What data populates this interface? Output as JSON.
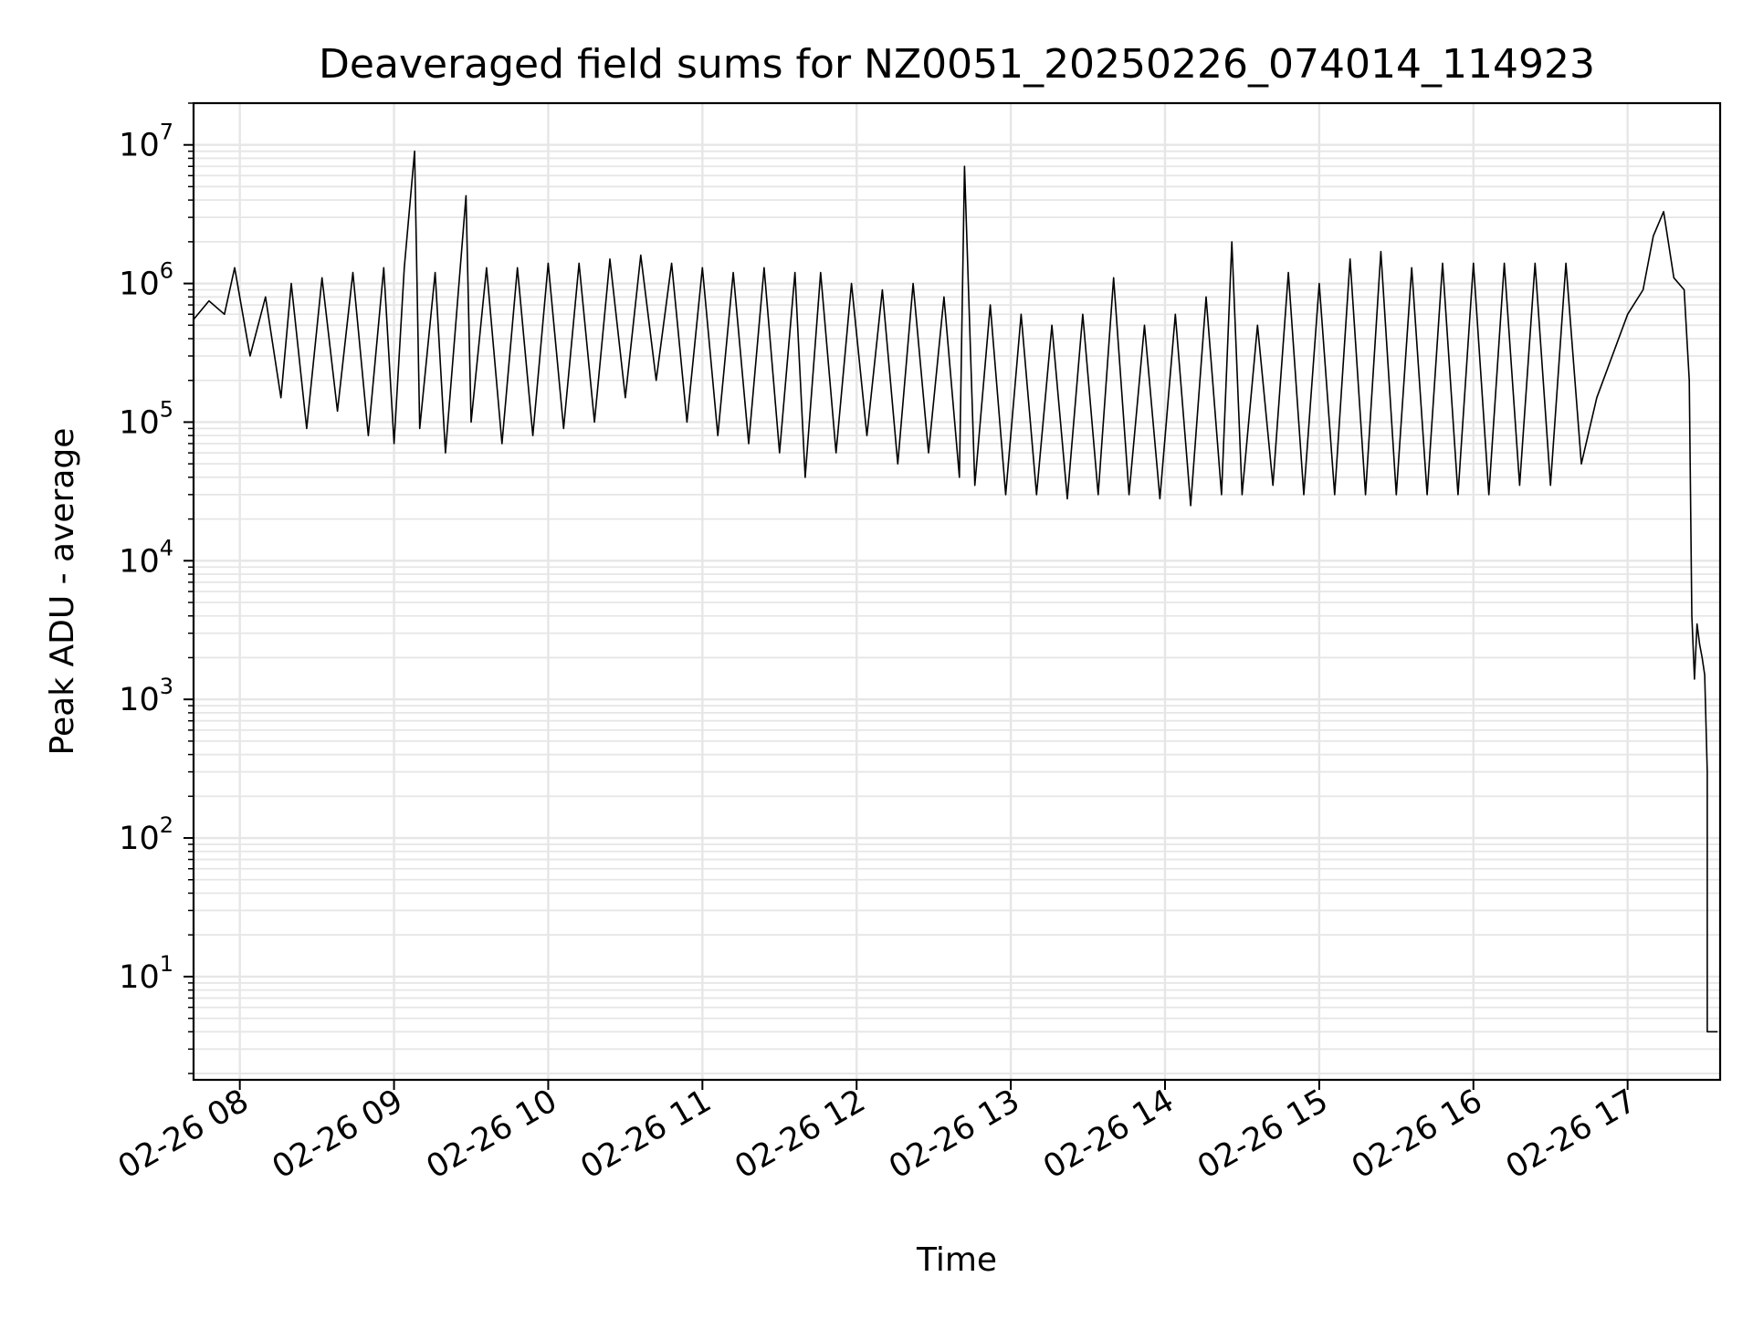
{
  "chart_data": {
    "type": "line",
    "title": "Deaveraged field sums for NZ0051_20250226_074014_114923",
    "xlabel": "Time",
    "ylabel": "Peak ADU - average",
    "yscale": "log",
    "ylim": [
      1.8,
      20000000
    ],
    "xlim": [
      "02-26 07:42",
      "02-26 17:36"
    ],
    "grid": "on, major and minor",
    "line_color": "#000000",
    "grid_color": "#e6e6e6",
    "x_ticks": [
      "02-26 08",
      "02-26 09",
      "02-26 10",
      "02-26 11",
      "02-26 12",
      "02-26 13",
      "02-26 14",
      "02-26 15",
      "02-26 16",
      "02-26 17"
    ],
    "y_ticks": [
      {
        "base": "10",
        "exp": "1",
        "value": 10
      },
      {
        "base": "10",
        "exp": "2",
        "value": 100
      },
      {
        "base": "10",
        "exp": "3",
        "value": 1000
      },
      {
        "base": "10",
        "exp": "4",
        "value": 10000
      },
      {
        "base": "10",
        "exp": "5",
        "value": 100000
      },
      {
        "base": "10",
        "exp": "6",
        "value": 1000000
      },
      {
        "base": "10",
        "exp": "7",
        "value": 10000000
      }
    ],
    "series": [
      {
        "points": [
          [
            "02-26 07:42",
            550000
          ],
          [
            "02-26 07:48",
            750000
          ],
          [
            "02-26 07:54",
            600000
          ],
          [
            "02-26 07:58",
            1300000
          ],
          [
            "02-26 08:04",
            300000
          ],
          [
            "02-26 08:10",
            800000
          ],
          [
            "02-26 08:16",
            150000
          ],
          [
            "02-26 08:20",
            1000000
          ],
          [
            "02-26 08:26",
            90000
          ],
          [
            "02-26 08:32",
            1100000
          ],
          [
            "02-26 08:38",
            120000
          ],
          [
            "02-26 08:44",
            1200000
          ],
          [
            "02-26 08:50",
            80000
          ],
          [
            "02-26 08:56",
            1300000
          ],
          [
            "02-26 09:00",
            70000
          ],
          [
            "02-26 09:04",
            1300000
          ],
          [
            "02-26 09:08",
            9000000
          ],
          [
            "02-26 09:10",
            90000
          ],
          [
            "02-26 09:16",
            1200000
          ],
          [
            "02-26 09:20",
            60000
          ],
          [
            "02-26 09:28",
            4300000
          ],
          [
            "02-26 09:30",
            100000
          ],
          [
            "02-26 09:36",
            1300000
          ],
          [
            "02-26 09:42",
            70000
          ],
          [
            "02-26 09:48",
            1300000
          ],
          [
            "02-26 09:54",
            80000
          ],
          [
            "02-26 10:00",
            1400000
          ],
          [
            "02-26 10:06",
            90000
          ],
          [
            "02-26 10:12",
            1400000
          ],
          [
            "02-26 10:18",
            100000
          ],
          [
            "02-26 10:24",
            1500000
          ],
          [
            "02-26 10:30",
            150000
          ],
          [
            "02-26 10:36",
            1600000
          ],
          [
            "02-26 10:42",
            200000
          ],
          [
            "02-26 10:48",
            1400000
          ],
          [
            "02-26 10:54",
            100000
          ],
          [
            "02-26 11:00",
            1300000
          ],
          [
            "02-26 11:06",
            80000
          ],
          [
            "02-26 11:12",
            1200000
          ],
          [
            "02-26 11:18",
            70000
          ],
          [
            "02-26 11:24",
            1300000
          ],
          [
            "02-26 11:30",
            60000
          ],
          [
            "02-26 11:36",
            1200000
          ],
          [
            "02-26 11:40",
            40000
          ],
          [
            "02-26 11:46",
            1200000
          ],
          [
            "02-26 11:52",
            60000
          ],
          [
            "02-26 11:58",
            1000000
          ],
          [
            "02-26 12:04",
            80000
          ],
          [
            "02-26 12:10",
            900000
          ],
          [
            "02-26 12:16",
            50000
          ],
          [
            "02-26 12:22",
            1000000
          ],
          [
            "02-26 12:28",
            60000
          ],
          [
            "02-26 12:34",
            800000
          ],
          [
            "02-26 12:40",
            40000
          ],
          [
            "02-26 12:42",
            7000000
          ],
          [
            "02-26 12:46",
            35000
          ],
          [
            "02-26 12:52",
            700000
          ],
          [
            "02-26 12:58",
            30000
          ],
          [
            "02-26 13:04",
            600000
          ],
          [
            "02-26 13:10",
            30000
          ],
          [
            "02-26 13:16",
            500000
          ],
          [
            "02-26 13:22",
            28000
          ],
          [
            "02-26 13:28",
            600000
          ],
          [
            "02-26 13:34",
            30000
          ],
          [
            "02-26 13:40",
            1100000
          ],
          [
            "02-26 13:46",
            30000
          ],
          [
            "02-26 13:52",
            500000
          ],
          [
            "02-26 13:58",
            28000
          ],
          [
            "02-26 14:04",
            600000
          ],
          [
            "02-26 14:10",
            25000
          ],
          [
            "02-26 14:16",
            800000
          ],
          [
            "02-26 14:22",
            30000
          ],
          [
            "02-26 14:26",
            2000000
          ],
          [
            "02-26 14:30",
            30000
          ],
          [
            "02-26 14:36",
            500000
          ],
          [
            "02-26 14:42",
            35000
          ],
          [
            "02-26 14:48",
            1200000
          ],
          [
            "02-26 14:54",
            30000
          ],
          [
            "02-26 15:00",
            1000000
          ],
          [
            "02-26 15:06",
            30000
          ],
          [
            "02-26 15:12",
            1500000
          ],
          [
            "02-26 15:18",
            30000
          ],
          [
            "02-26 15:24",
            1700000
          ],
          [
            "02-26 15:30",
            30000
          ],
          [
            "02-26 15:36",
            1300000
          ],
          [
            "02-26 15:42",
            30000
          ],
          [
            "02-26 15:48",
            1400000
          ],
          [
            "02-26 15:54",
            30000
          ],
          [
            "02-26 16:00",
            1400000
          ],
          [
            "02-26 16:06",
            30000
          ],
          [
            "02-26 16:12",
            1400000
          ],
          [
            "02-26 16:18",
            35000
          ],
          [
            "02-26 16:24",
            1400000
          ],
          [
            "02-26 16:30",
            35000
          ],
          [
            "02-26 16:36",
            1400000
          ],
          [
            "02-26 16:42",
            50000
          ],
          [
            "02-26 16:48",
            150000
          ],
          [
            "02-26 16:54",
            300000
          ],
          [
            "02-26 17:00",
            600000
          ],
          [
            "02-26 17:06",
            900000
          ],
          [
            "02-26 17:10",
            2200000
          ],
          [
            "02-26 17:14",
            3300000
          ],
          [
            "02-26 17:18",
            1100000
          ],
          [
            "02-26 17:22",
            900000
          ],
          [
            "02-26 17:24",
            200000
          ],
          [
            "02-26 17:25",
            4000
          ],
          [
            "02-26 17:26",
            1400
          ],
          [
            "02-26 17:27",
            3500
          ],
          [
            "02-26 17:28",
            2500
          ],
          [
            "02-26 17:29",
            2000
          ],
          [
            "02-26 17:30",
            1500
          ],
          [
            "02-26 17:31",
            300
          ],
          [
            "02-26 17:31",
            4
          ],
          [
            "02-26 17:33",
            4
          ],
          [
            "02-26 17:35",
            4
          ]
        ]
      }
    ]
  }
}
